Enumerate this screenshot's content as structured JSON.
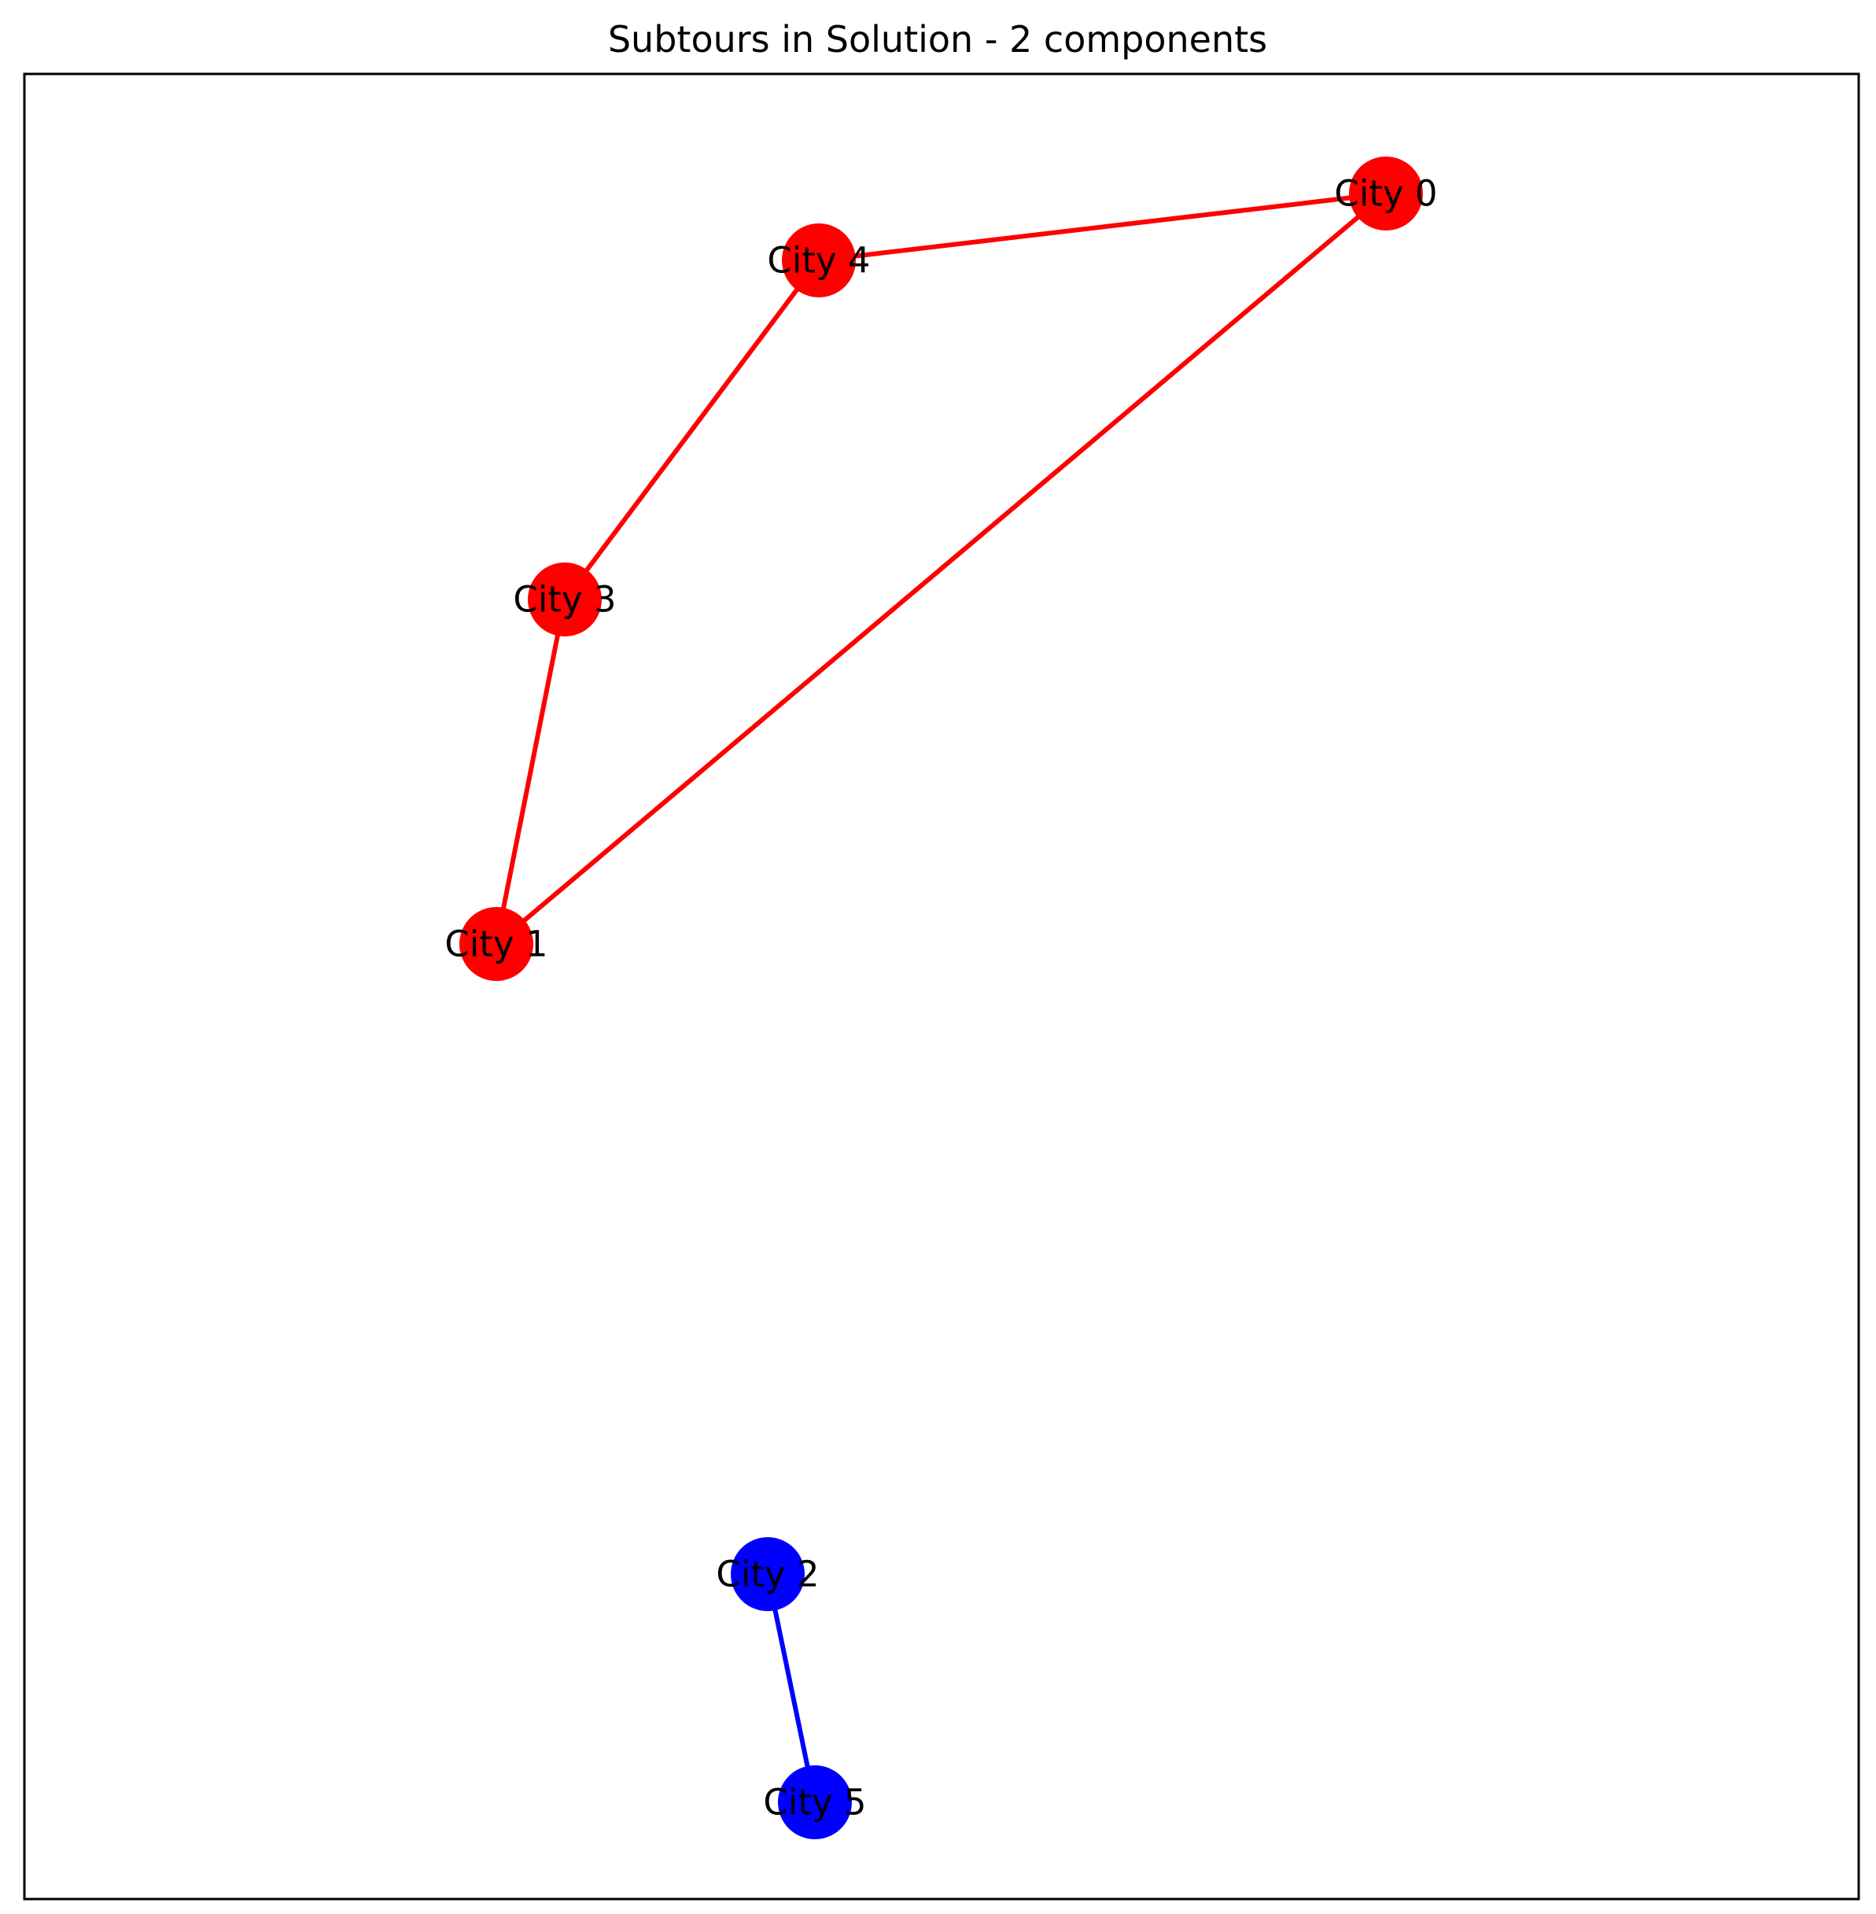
{
  "figure": {
    "title": "Subtours in Solution - 2 components"
  },
  "graph": {
    "nodes": [
      {
        "id": "0",
        "label": "City 0",
        "component": 0
      },
      {
        "id": "1",
        "label": "City 1",
        "component": 0
      },
      {
        "id": "2",
        "label": "City 2",
        "component": 1
      },
      {
        "id": "3",
        "label": "City 3",
        "component": 0
      },
      {
        "id": "4",
        "label": "City 4",
        "component": 0
      },
      {
        "id": "5",
        "label": "City 5",
        "component": 1
      }
    ],
    "edges": [
      {
        "source": "0",
        "target": "4",
        "component": 0
      },
      {
        "source": "4",
        "target": "3",
        "component": 0
      },
      {
        "source": "3",
        "target": "1",
        "component": 0
      },
      {
        "source": "1",
        "target": "0",
        "component": 0
      },
      {
        "source": "2",
        "target": "5",
        "component": 1
      }
    ],
    "components": [
      {
        "color": "#ff0000",
        "nodes": [
          "0",
          "4",
          "3",
          "1"
        ]
      },
      {
        "color": "#0000ff",
        "nodes": [
          "2",
          "5"
        ]
      }
    ]
  }
}
